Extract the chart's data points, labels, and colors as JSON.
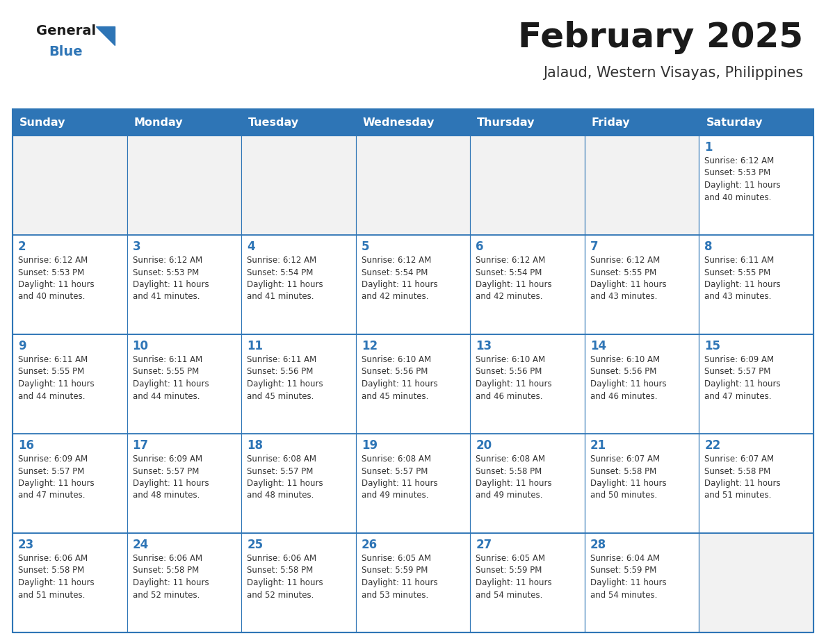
{
  "title": "February 2025",
  "subtitle": "Jalaud, Western Visayas, Philippines",
  "days_of_week": [
    "Sunday",
    "Monday",
    "Tuesday",
    "Wednesday",
    "Thursday",
    "Friday",
    "Saturday"
  ],
  "header_bg_color": "#2E75B6",
  "header_text_color": "#FFFFFF",
  "cell_bg_color": "#FFFFFF",
  "empty_cell_bg_color": "#F2F2F2",
  "grid_color": "#2E75B6",
  "title_color": "#1A1A1A",
  "subtitle_color": "#333333",
  "day_number_color": "#2E75B6",
  "cell_text_color": "#333333",
  "logo_general_color": "#1A1A1A",
  "logo_blue_color": "#2E75B6",
  "logo_triangle_color": "#2E75B6",
  "calendar_data": [
    [
      null,
      null,
      null,
      null,
      null,
      null,
      {
        "day": 1,
        "sunrise": "6:12 AM",
        "sunset": "5:53 PM",
        "daylight": "11 hours and 40 minutes."
      }
    ],
    [
      {
        "day": 2,
        "sunrise": "6:12 AM",
        "sunset": "5:53 PM",
        "daylight": "11 hours and 40 minutes."
      },
      {
        "day": 3,
        "sunrise": "6:12 AM",
        "sunset": "5:53 PM",
        "daylight": "11 hours and 41 minutes."
      },
      {
        "day": 4,
        "sunrise": "6:12 AM",
        "sunset": "5:54 PM",
        "daylight": "11 hours and 41 minutes."
      },
      {
        "day": 5,
        "sunrise": "6:12 AM",
        "sunset": "5:54 PM",
        "daylight": "11 hours and 42 minutes."
      },
      {
        "day": 6,
        "sunrise": "6:12 AM",
        "sunset": "5:54 PM",
        "daylight": "11 hours and 42 minutes."
      },
      {
        "day": 7,
        "sunrise": "6:12 AM",
        "sunset": "5:55 PM",
        "daylight": "11 hours and 43 minutes."
      },
      {
        "day": 8,
        "sunrise": "6:11 AM",
        "sunset": "5:55 PM",
        "daylight": "11 hours and 43 minutes."
      }
    ],
    [
      {
        "day": 9,
        "sunrise": "6:11 AM",
        "sunset": "5:55 PM",
        "daylight": "11 hours and 44 minutes."
      },
      {
        "day": 10,
        "sunrise": "6:11 AM",
        "sunset": "5:55 PM",
        "daylight": "11 hours and 44 minutes."
      },
      {
        "day": 11,
        "sunrise": "6:11 AM",
        "sunset": "5:56 PM",
        "daylight": "11 hours and 45 minutes."
      },
      {
        "day": 12,
        "sunrise": "6:10 AM",
        "sunset": "5:56 PM",
        "daylight": "11 hours and 45 minutes."
      },
      {
        "day": 13,
        "sunrise": "6:10 AM",
        "sunset": "5:56 PM",
        "daylight": "11 hours and 46 minutes."
      },
      {
        "day": 14,
        "sunrise": "6:10 AM",
        "sunset": "5:56 PM",
        "daylight": "11 hours and 46 minutes."
      },
      {
        "day": 15,
        "sunrise": "6:09 AM",
        "sunset": "5:57 PM",
        "daylight": "11 hours and 47 minutes."
      }
    ],
    [
      {
        "day": 16,
        "sunrise": "6:09 AM",
        "sunset": "5:57 PM",
        "daylight": "11 hours and 47 minutes."
      },
      {
        "day": 17,
        "sunrise": "6:09 AM",
        "sunset": "5:57 PM",
        "daylight": "11 hours and 48 minutes."
      },
      {
        "day": 18,
        "sunrise": "6:08 AM",
        "sunset": "5:57 PM",
        "daylight": "11 hours and 48 minutes."
      },
      {
        "day": 19,
        "sunrise": "6:08 AM",
        "sunset": "5:57 PM",
        "daylight": "11 hours and 49 minutes."
      },
      {
        "day": 20,
        "sunrise": "6:08 AM",
        "sunset": "5:58 PM",
        "daylight": "11 hours and 49 minutes."
      },
      {
        "day": 21,
        "sunrise": "6:07 AM",
        "sunset": "5:58 PM",
        "daylight": "11 hours and 50 minutes."
      },
      {
        "day": 22,
        "sunrise": "6:07 AM",
        "sunset": "5:58 PM",
        "daylight": "11 hours and 51 minutes."
      }
    ],
    [
      {
        "day": 23,
        "sunrise": "6:06 AM",
        "sunset": "5:58 PM",
        "daylight": "11 hours and 51 minutes."
      },
      {
        "day": 24,
        "sunrise": "6:06 AM",
        "sunset": "5:58 PM",
        "daylight": "11 hours and 52 minutes."
      },
      {
        "day": 25,
        "sunrise": "6:06 AM",
        "sunset": "5:58 PM",
        "daylight": "11 hours and 52 minutes."
      },
      {
        "day": 26,
        "sunrise": "6:05 AM",
        "sunset": "5:59 PM",
        "daylight": "11 hours and 53 minutes."
      },
      {
        "day": 27,
        "sunrise": "6:05 AM",
        "sunset": "5:59 PM",
        "daylight": "11 hours and 54 minutes."
      },
      {
        "day": 28,
        "sunrise": "6:04 AM",
        "sunset": "5:59 PM",
        "daylight": "11 hours and 54 minutes."
      },
      null
    ]
  ]
}
